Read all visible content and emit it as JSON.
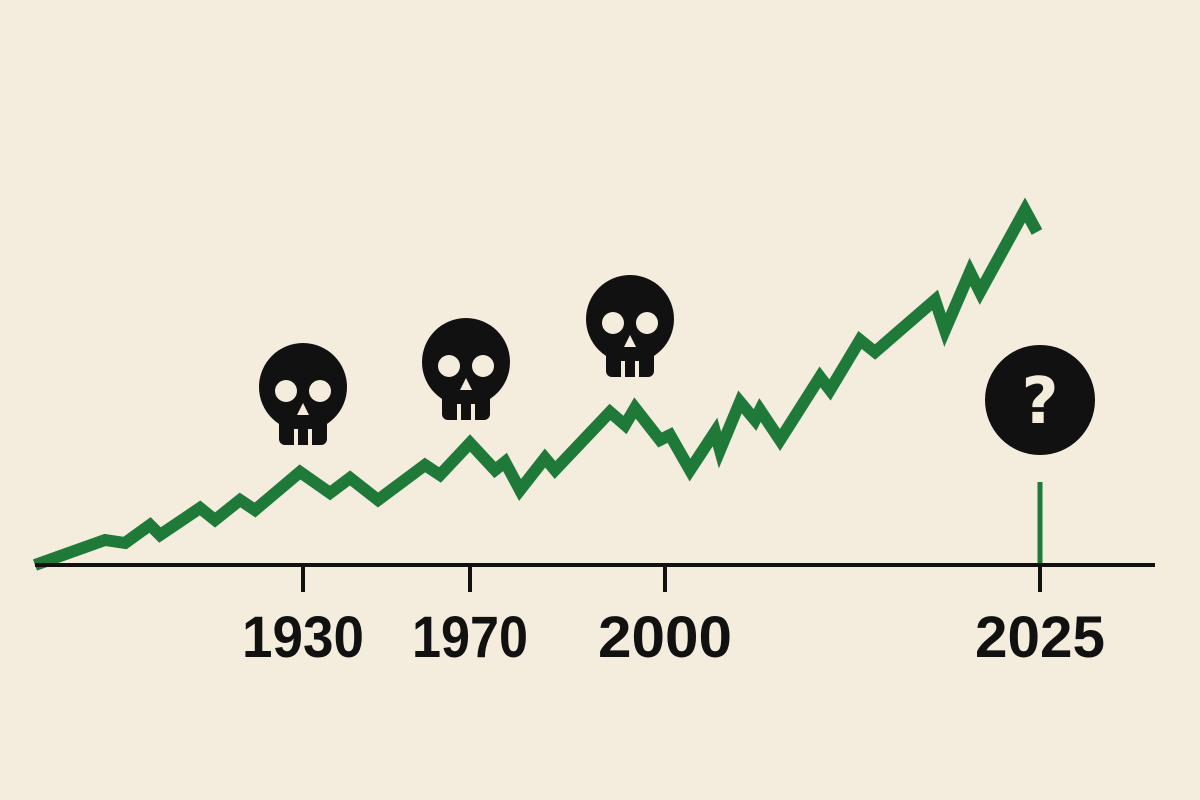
{
  "timeline": {
    "labels": [
      "1930",
      "1970",
      "2000",
      "2025"
    ],
    "future_marker": "?"
  }
}
